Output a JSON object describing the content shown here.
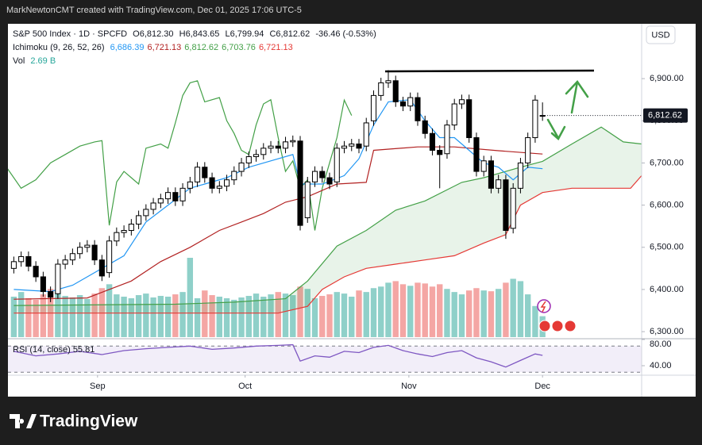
{
  "chart_data": {
    "type": "candlestick",
    "header": "MarkNewtonCMT created with TradingView.com, Dec 01, 2025 17:06 UTC-5",
    "legend": {
      "symbol": "S&P 500 Index · 1D · SPCFD",
      "ohlc": [
        [
          "O",
          "6,812.30"
        ],
        [
          "H",
          "6,843.65"
        ],
        [
          "L",
          "6,799.94"
        ],
        [
          "C",
          "6,812.62"
        ]
      ],
      "change": "-36.46 (-0.53%)"
    },
    "currency": "USD",
    "xlim": [
      -0.8,
      85.5
    ],
    "xticks": [
      {
        "value": 11.4,
        "label": "Sep"
      },
      {
        "value": 31.5,
        "label": "Oct"
      },
      {
        "value": 53.8,
        "label": "Nov"
      },
      {
        "value": 72,
        "label": "Dec"
      }
    ],
    "ylim": [
      6287,
      7030
    ],
    "yticks": [
      {
        "value": 6300,
        "label": "6,300.00"
      },
      {
        "value": 6400,
        "label": "6,400.00"
      },
      {
        "value": 6500,
        "label": "6,500.00"
      },
      {
        "value": 6600,
        "label": "6,600.00"
      },
      {
        "value": 6700,
        "label": "6,700.00"
      },
      {
        "value": 6800,
        "label": "6,800.00"
      },
      {
        "value": 6900,
        "label": "6,900.00"
      }
    ],
    "last_price": {
      "value": 6812.62,
      "label": "6,812.62"
    },
    "candles": {
      "up_color": "#ffffff",
      "down_color": "#000000",
      "open": [
        6450,
        6466,
        6478,
        6455,
        6430,
        6395,
        6390,
        6460,
        6470,
        6485,
        6500,
        6505,
        6470,
        6440,
        6515,
        6535,
        6540,
        6555,
        6575,
        6590,
        6605,
        6615,
        6630,
        6610,
        6640,
        6655,
        6690,
        6665,
        6640,
        6645,
        6660,
        6680,
        6700,
        6715,
        6720,
        6735,
        6740,
        6735,
        6750,
        6752,
        6570,
        6655,
        6680,
        6665,
        6655,
        6735,
        6740,
        6745,
        6740,
        6800,
        6860,
        6890,
        6895,
        6845,
        6835,
        6855,
        6800,
        6770,
        6730,
        6722,
        6790,
        6840,
        6850,
        6760,
        6680,
        6705,
        6640,
        6660,
        6545,
        6640,
        6700,
        6760,
        6812.3
      ],
      "high": [
        6478,
        6490,
        6490,
        6467,
        6442,
        6407,
        6472,
        6482,
        6497,
        6512,
        6517,
        6517,
        6482,
        6527,
        6547,
        6552,
        6567,
        6587,
        6602,
        6617,
        6627,
        6642,
        6642,
        6652,
        6667,
        6702,
        6702,
        6677,
        6657,
        6672,
        6692,
        6712,
        6727,
        6732,
        6747,
        6752,
        6752,
        6762,
        6765,
        6764,
        6667,
        6692,
        6692,
        6677,
        6747,
        6752,
        6757,
        6757,
        6807,
        6872,
        6902,
        6920,
        6907,
        6857,
        6867,
        6867,
        6812,
        6782,
        6742,
        6802,
        6852,
        6862,
        6862,
        6772,
        6717,
        6717,
        6672,
        6672,
        6652,
        6712,
        6772,
        6861,
        6843.65
      ],
      "low": [
        6438,
        6454,
        6443,
        6418,
        6383,
        6370,
        6378,
        6448,
        6458,
        6473,
        6488,
        6458,
        6420,
        6428,
        6503,
        6523,
        6528,
        6543,
        6563,
        6578,
        6593,
        6603,
        6598,
        6598,
        6628,
        6643,
        6653,
        6628,
        6628,
        6633,
        6648,
        6668,
        6688,
        6703,
        6708,
        6723,
        6723,
        6723,
        6738,
        6540,
        6558,
        6643,
        6653,
        6638,
        6643,
        6723,
        6728,
        6723,
        6728,
        6788,
        6848,
        6878,
        6833,
        6823,
        6823,
        6788,
        6758,
        6718,
        6640,
        6710,
        6778,
        6828,
        6748,
        6668,
        6668,
        6628,
        6628,
        6520,
        6533,
        6628,
        6688,
        6748,
        6799.94
      ],
      "close": [
        6466,
        6478,
        6455,
        6430,
        6395,
        6382,
        6460,
        6470,
        6485,
        6500,
        6505,
        6470,
        6432,
        6515,
        6535,
        6540,
        6555,
        6575,
        6590,
        6605,
        6615,
        6630,
        6610,
        6640,
        6655,
        6690,
        6665,
        6640,
        6645,
        6660,
        6680,
        6700,
        6715,
        6720,
        6735,
        6740,
        6735,
        6750,
        6753,
        6552,
        6655,
        6680,
        6665,
        6650,
        6735,
        6740,
        6745,
        6735,
        6795,
        6860,
        6890,
        6895,
        6845,
        6835,
        6855,
        6800,
        6770,
        6730,
        6720,
        6790,
        6840,
        6850,
        6760,
        6680,
        6705,
        6640,
        6660,
        6540,
        6640,
        6700,
        6760,
        6849,
        6812.62
      ]
    },
    "ichimoku": {
      "name": "Ichimoku (9, 26, 52, 26)",
      "readouts": [
        [
          "6,686.39",
          "#2196f3"
        ],
        [
          "6,721.13",
          "#b22222"
        ],
        [
          "6,812.62",
          "#43a047"
        ],
        [
          "6,703.76",
          "#43a047"
        ],
        [
          "6,721.13",
          "#e53935"
        ]
      ],
      "cloud_color": "#43a047",
      "series": [
        {
          "color": "#2196f3",
          "x": [
            0,
            5,
            8,
            12,
            15,
            18,
            21,
            24,
            26,
            29,
            32,
            35,
            38,
            39,
            42,
            45,
            47,
            49,
            51,
            54,
            56,
            58,
            60,
            62,
            64,
            66,
            68,
            70,
            72
          ],
          "values": [
            6400,
            6395,
            6410,
            6450,
            6480,
            6560,
            6600,
            6640,
            6650,
            6665,
            6690,
            6705,
            6720,
            6650,
            6650,
            6670,
            6710,
            6790,
            6845,
            6850,
            6800,
            6760,
            6760,
            6730,
            6700,
            6690,
            6660,
            6690,
            6686.39
          ]
        },
        {
          "color": "#b22222",
          "x": [
            0,
            10,
            13,
            16,
            20,
            24,
            28,
            31,
            34,
            37,
            40,
            44,
            48,
            49,
            55,
            60,
            66,
            72
          ],
          "values": [
            6377,
            6380,
            6400,
            6420,
            6466,
            6500,
            6540,
            6560,
            6580,
            6607,
            6620,
            6650,
            6654,
            6730,
            6738,
            6738,
            6729,
            6721.13
          ]
        },
        {
          "color": "#43a047",
          "x": [
            -1,
            1,
            3,
            5,
            7,
            9,
            11,
            12,
            13,
            14,
            15,
            16,
            17,
            18,
            20,
            21,
            22,
            23,
            24,
            25,
            26,
            28,
            29,
            30,
            31,
            32,
            33,
            34,
            35,
            36,
            37,
            38,
            39,
            40,
            41,
            42,
            43,
            44,
            45,
            46
          ],
          "values": [
            6690,
            6640,
            6660,
            6700,
            6720,
            6740,
            6750,
            6753,
            6552,
            6655,
            6680,
            6665,
            6650,
            6735,
            6745,
            6735,
            6795,
            6860,
            6890,
            6895,
            6845,
            6855,
            6800,
            6770,
            6730,
            6720,
            6790,
            6840,
            6850,
            6760,
            6680,
            6705,
            6640,
            6660,
            6540,
            6640,
            6700,
            6760,
            6849,
            6812.62
          ]
        },
        {
          "color": "#43a047",
          "x": [
            0,
            22,
            30,
            37,
            40,
            44,
            48,
            52,
            56,
            61,
            64,
            66,
            69,
            72,
            76,
            80,
            83,
            85.5
          ],
          "values": [
            6362,
            6365,
            6370,
            6378,
            6420,
            6503,
            6540,
            6588,
            6610,
            6654,
            6665,
            6675,
            6690,
            6703.76,
            6745,
            6785,
            6750,
            6745
          ]
        },
        {
          "color": "#e53935",
          "x": [
            0,
            36,
            40,
            42,
            45,
            48,
            52,
            56,
            60,
            64,
            67,
            69,
            72,
            76,
            84,
            85.5
          ],
          "values": [
            6344,
            6344,
            6360,
            6400,
            6430,
            6450,
            6460,
            6470,
            6480,
            6510,
            6530,
            6600,
            6630,
            6640,
            6640,
            6670
          ]
        }
      ]
    },
    "volume": {
      "label": "Vol",
      "readout": "2.69 B",
      "up_color": "#8fd0c9",
      "down_color": "#f4a6a4",
      "values": [
        5.2,
        5.8,
        5.0,
        4.8,
        5.5,
        6.2,
        6.0,
        5.3,
        5.1,
        5.4,
        4.9,
        5.6,
        6.3,
        6.8,
        5.5,
        5.2,
        5.0,
        5.4,
        5.6,
        5.1,
        5.3,
        5.2,
        5.5,
        5.8,
        10.2,
        5.0,
        6.0,
        5.4,
        5.2,
        5.0,
        4.8,
        5.1,
        5.3,
        5.6,
        5.2,
        5.5,
        5.8,
        5.6,
        5.4,
        6.5,
        6.2,
        5.0,
        5.3,
        5.5,
        5.8,
        5.6,
        5.2,
        6.0,
        5.8,
        6.3,
        6.5,
        7.0,
        7.2,
        6.8,
        6.6,
        7.0,
        6.9,
        6.5,
        6.8,
        6.2,
        5.8,
        5.5,
        6.0,
        6.3,
        6.0,
        5.9,
        6.2,
        7.0,
        7.5,
        7.2,
        5.5,
        4.0,
        2.69
      ]
    },
    "rsi": {
      "name": "RSI (14, close)",
      "readout": "55.81",
      "color": "#7e57c2",
      "ylim": [
        25.5,
        80
      ],
      "yticks": [
        {
          "value": 80,
          "label": "80.00"
        },
        {
          "value": 40,
          "label": "40.00"
        }
      ],
      "band": [
        30,
        70
      ],
      "x": [
        0,
        3,
        6,
        9,
        12,
        15,
        18,
        21,
        24,
        27,
        30,
        33,
        36,
        38,
        39,
        41,
        43,
        45,
        47,
        49,
        51,
        53,
        55,
        57,
        59,
        61,
        63,
        65,
        67,
        69,
        71,
        72
      ],
      "values": [
        62,
        55,
        58,
        62,
        57,
        63,
        66,
        68,
        70,
        65,
        67,
        70,
        71,
        72,
        47,
        55,
        53,
        62,
        60,
        68,
        71,
        63,
        58,
        54,
        60,
        63,
        52,
        46,
        38,
        48,
        58,
        55.81
      ]
    },
    "logo": "TradingView"
  }
}
